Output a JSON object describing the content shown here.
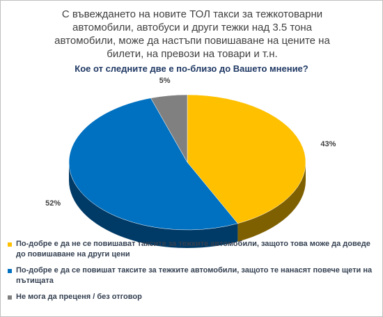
{
  "chart_data": {
    "type": "pie3d",
    "title": "С въвеждането на новите ТОЛ такси за тежкотоварни автомобили, автобуси и други тежки над 3.5 тона автомобили, може да настъпи повишаване на цените на билети, на превози на товари и т.н.",
    "subtitle": "Кое от следните две е по-близо до Вашето мнение?",
    "categories": [
      "По-добре е да не се повишават  таксите  за тежките автомобили,  защото това може да доведе до повишаване  на  други цени",
      "По-добре е да се повишат таксите  за тежките автомобили,  защото те нанасят  повече щети на пътищата",
      "Не мога да преценя  / без отговор"
    ],
    "values": [
      43,
      52,
      5
    ],
    "value_labels": [
      "43%",
      "52%",
      "5%"
    ],
    "colors": [
      "#FFC000",
      "#0070C0",
      "#808080"
    ],
    "side_colors": [
      "#7F6000",
      "#003A66",
      "#404040"
    ]
  }
}
